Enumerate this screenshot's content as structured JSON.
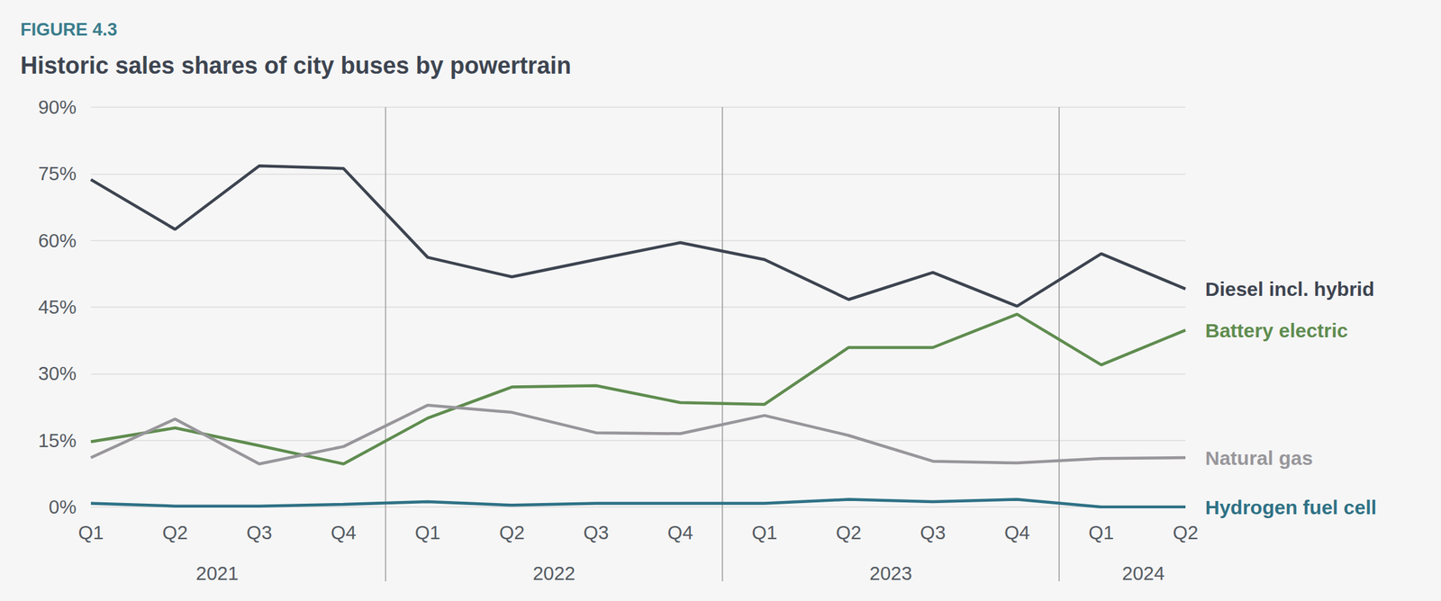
{
  "chart_data": {
    "type": "line",
    "figure_label": "FIGURE 4.3",
    "title": "Historic sales shares of city buses by powertrain",
    "categories": [
      "Q1",
      "Q2",
      "Q3",
      "Q4",
      "Q1",
      "Q2",
      "Q3",
      "Q4",
      "Q1",
      "Q2",
      "Q3",
      "Q4",
      "Q1",
      "Q2"
    ],
    "year_groups": [
      {
        "label": "2021",
        "span": 4
      },
      {
        "label": "2022",
        "span": 4
      },
      {
        "label": "2023",
        "span": 4
      },
      {
        "label": "2024",
        "span": 2
      }
    ],
    "series": [
      {
        "name": "Diesel incl. hybrid",
        "color": "#3d4450",
        "values": [
          73.7,
          62.5,
          76.8,
          76.2,
          56.2,
          51.8,
          55.7,
          59.5,
          55.7,
          46.7,
          52.8,
          45.2,
          57.0,
          49.1
        ]
      },
      {
        "name": "Battery electric",
        "color": "#5f8c4f",
        "values": [
          14.7,
          17.8,
          13.8,
          9.7,
          20.0,
          27.0,
          27.3,
          23.5,
          23.1,
          35.9,
          35.9,
          43.4,
          32.0,
          39.8
        ]
      },
      {
        "name": "Natural gas",
        "color": "#98969b",
        "values": [
          11.1,
          19.8,
          9.7,
          13.6,
          22.9,
          21.3,
          16.7,
          16.5,
          20.6,
          16.1,
          10.3,
          9.9,
          10.9,
          11.1
        ]
      },
      {
        "name": "Hydrogen fuel cell",
        "color": "#2e7185",
        "values": [
          0.8,
          0.2,
          0.2,
          0.6,
          1.2,
          0.4,
          0.8,
          0.8,
          0.8,
          1.7,
          1.2,
          1.7,
          0.0,
          0.0
        ]
      }
    ],
    "ylim": [
      0,
      90
    ],
    "yticks": [
      {
        "value": 0,
        "label": "0%"
      },
      {
        "value": 15,
        "label": "15%"
      },
      {
        "value": 30,
        "label": "30%"
      },
      {
        "value": 45,
        "label": "45%"
      },
      {
        "value": 60,
        "label": "60%"
      },
      {
        "value": 75,
        "label": "75%"
      },
      {
        "value": 90,
        "label": "90%"
      }
    ],
    "grid": true,
    "legend": false
  }
}
